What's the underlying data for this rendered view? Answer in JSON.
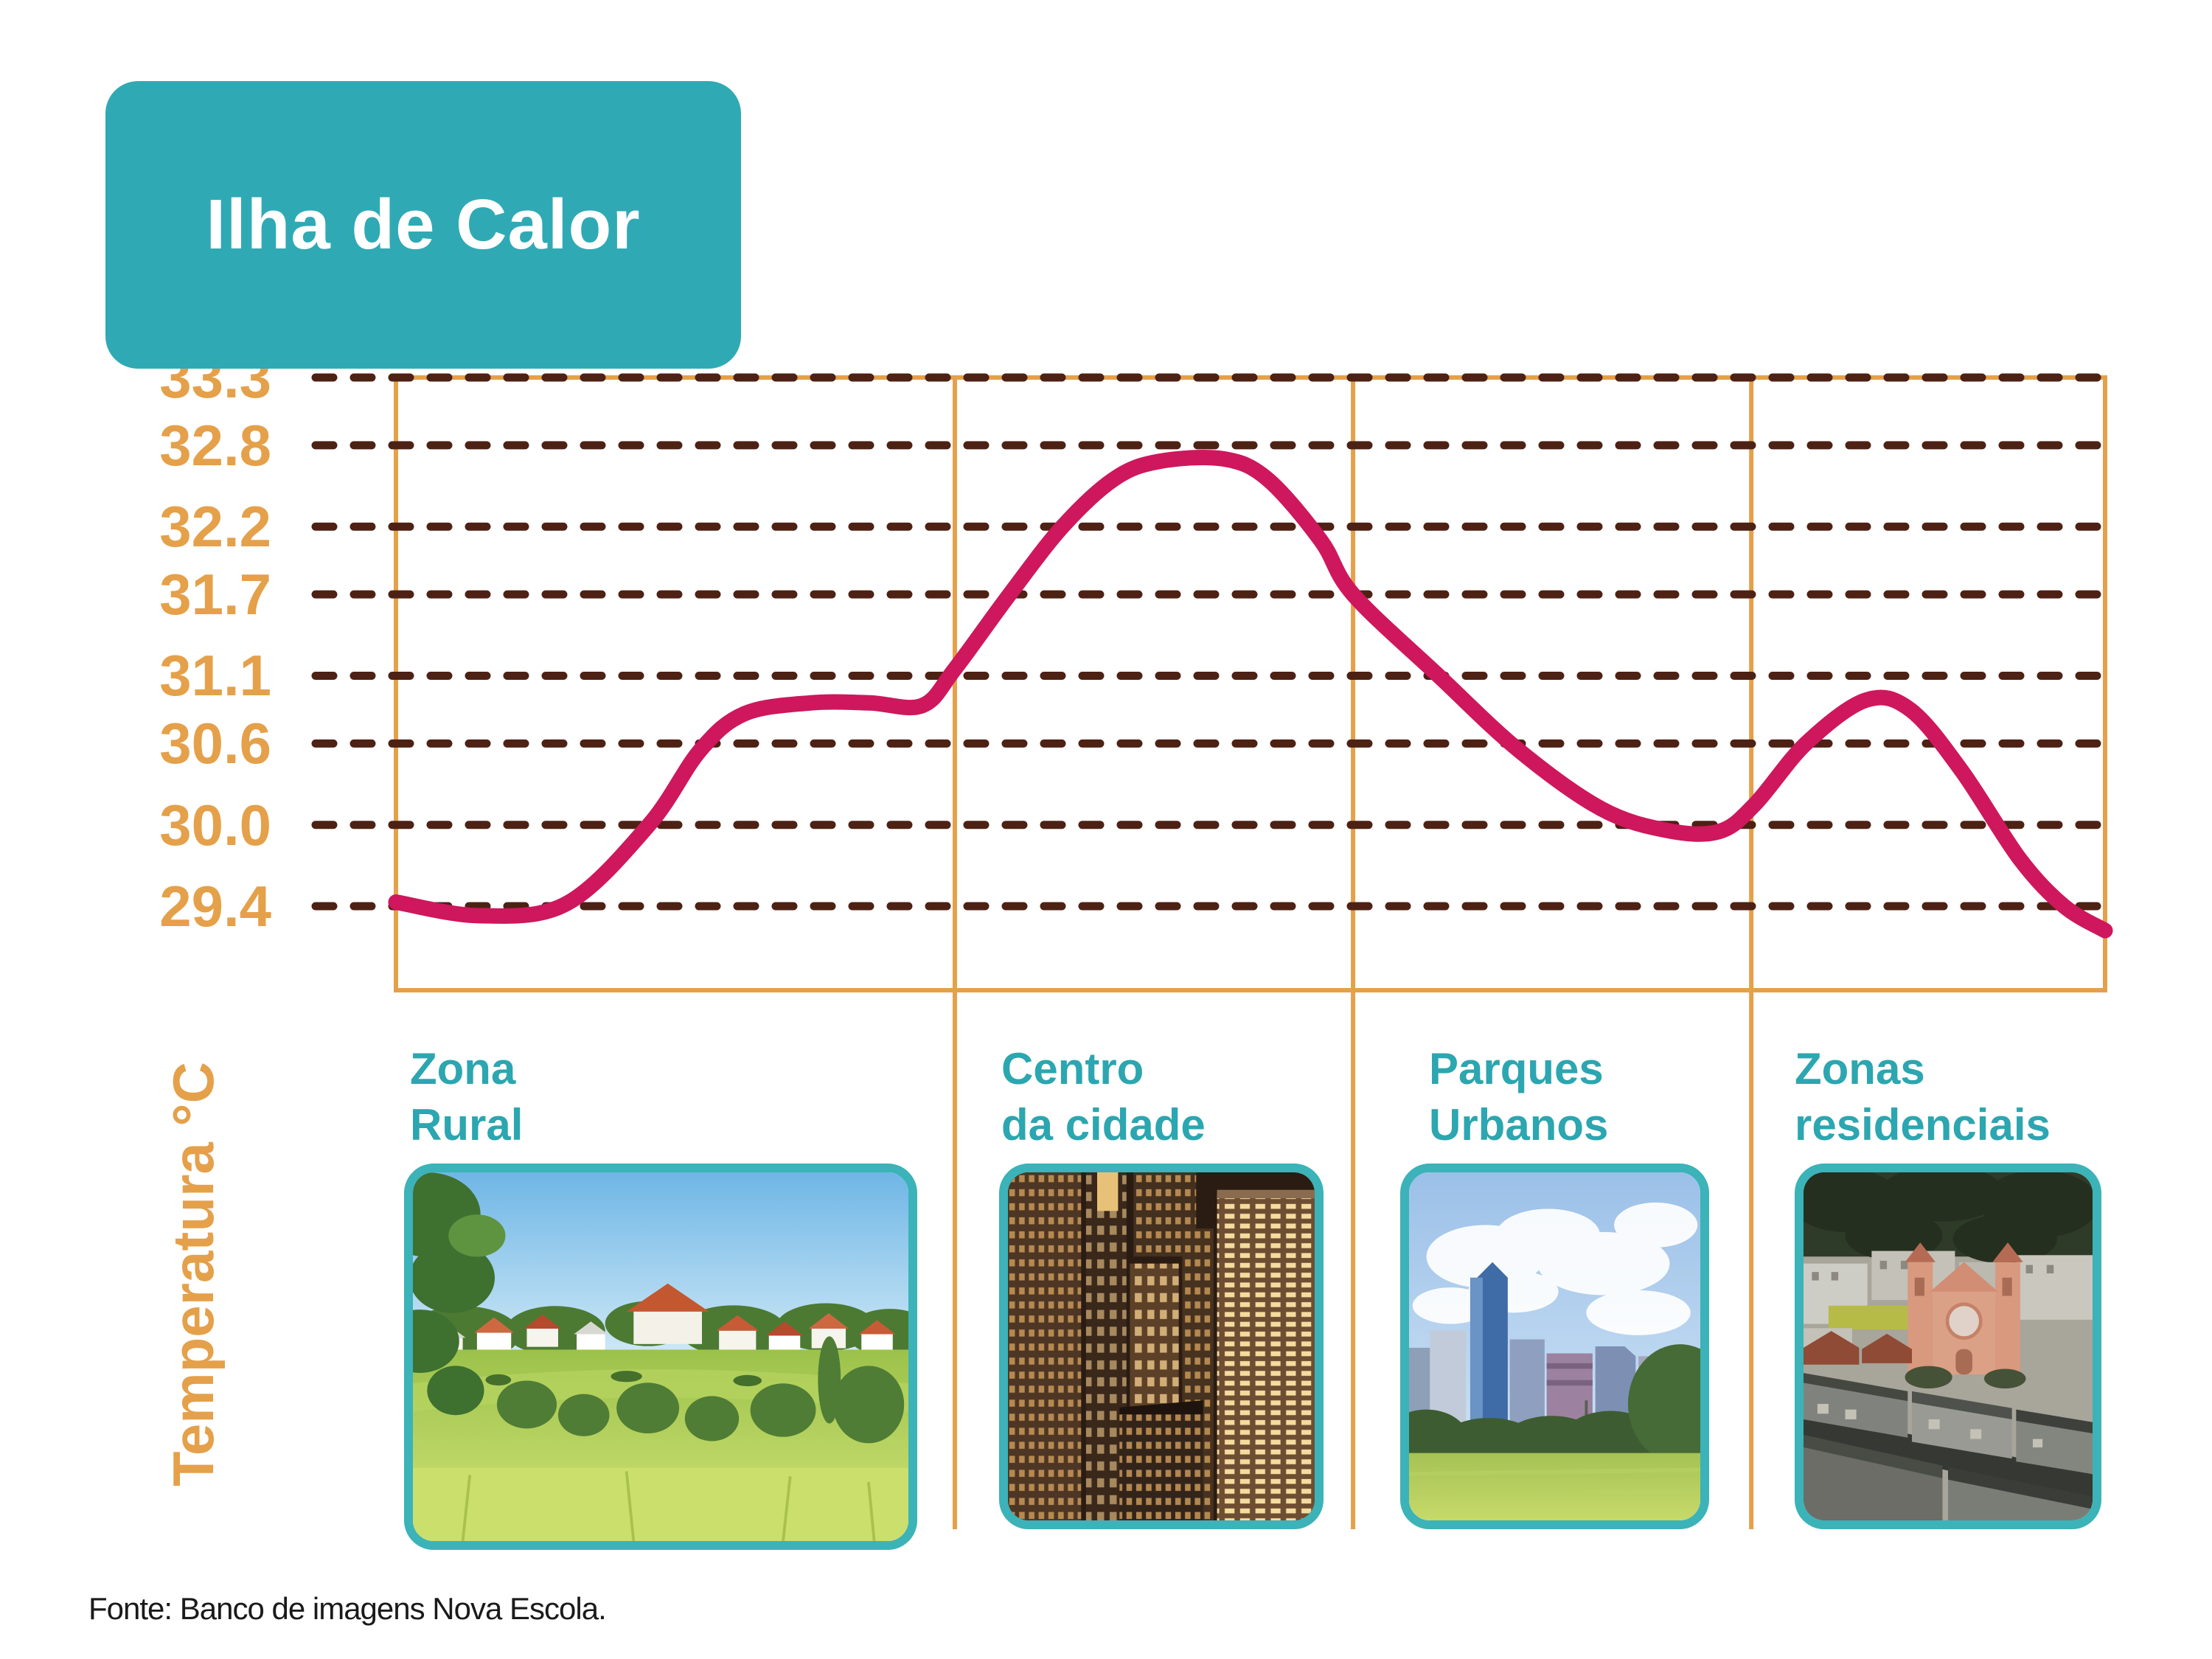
{
  "title": "Ilha de Calor",
  "y_axis": {
    "label": "Temperatura °C",
    "ticks": [
      "33.3",
      "32.8",
      "32.2",
      "31.7",
      "31.1",
      "30.6",
      "30.0",
      "29.4"
    ]
  },
  "zones": [
    {
      "label_line1": "Zona",
      "label_line2": "Rural",
      "photo": "rural-landscape"
    },
    {
      "label_line1": "Centro",
      "label_line2": "da cidade",
      "photo": "city-center-night"
    },
    {
      "label_line1": "Parques",
      "label_line2": "Urbanos",
      "photo": "urban-park"
    },
    {
      "label_line1": "Zonas",
      "label_line2": "residenciais",
      "photo": "residential-area"
    }
  ],
  "footer": "Fonte: Banco de imagens Nova Escola.",
  "colors": {
    "accent_teal": "#2FAAB4",
    "teal_border": "#3BB3B8",
    "teal_text": "#2CA6B0",
    "axis_orange": "#E5A04A",
    "grid_brown": "#4D2114",
    "line_magenta": "#CE175C",
    "title_text": "#FFFFFF",
    "footer_text": "#1A1A1A"
  },
  "chart_data": {
    "type": "line",
    "title": "Ilha de Calor",
    "ylabel": "Temperatura °C",
    "y_ticks": [
      33.3,
      32.8,
      32.2,
      31.7,
      31.1,
      30.6,
      30.0,
      29.4
    ],
    "ylim": [
      29.0,
      33.3
    ],
    "grid": "horizontal-dashed",
    "legend": false,
    "categories": [
      "Zona Rural",
      "Centro da cidade",
      "Parques Urbanos",
      "Zonas residenciais"
    ],
    "zone_boundaries_frac": [
      0,
      0.327,
      0.56,
      0.793,
      1.0
    ],
    "series": [
      {
        "name": "Temperatura",
        "points": [
          [
            0.0,
            29.43
          ],
          [
            0.049,
            29.33
          ],
          [
            0.1,
            29.42
          ],
          [
            0.148,
            30.0
          ],
          [
            0.178,
            30.55
          ],
          [
            0.204,
            30.82
          ],
          [
            0.243,
            30.9
          ],
          [
            0.277,
            30.9
          ],
          [
            0.308,
            30.88
          ],
          [
            0.327,
            31.15
          ],
          [
            0.359,
            31.7
          ],
          [
            0.39,
            32.2
          ],
          [
            0.42,
            32.55
          ],
          [
            0.446,
            32.68
          ],
          [
            0.484,
            32.7
          ],
          [
            0.51,
            32.55
          ],
          [
            0.541,
            32.1
          ],
          [
            0.56,
            31.7
          ],
          [
            0.61,
            31.1
          ],
          [
            0.657,
            30.55
          ],
          [
            0.705,
            30.12
          ],
          [
            0.743,
            29.96
          ],
          [
            0.774,
            29.95
          ],
          [
            0.795,
            30.15
          ],
          [
            0.825,
            30.6
          ],
          [
            0.86,
            30.92
          ],
          [
            0.886,
            30.85
          ],
          [
            0.916,
            30.4
          ],
          [
            0.95,
            29.75
          ],
          [
            0.976,
            29.4
          ],
          [
            1.0,
            29.22
          ]
        ]
      }
    ]
  }
}
